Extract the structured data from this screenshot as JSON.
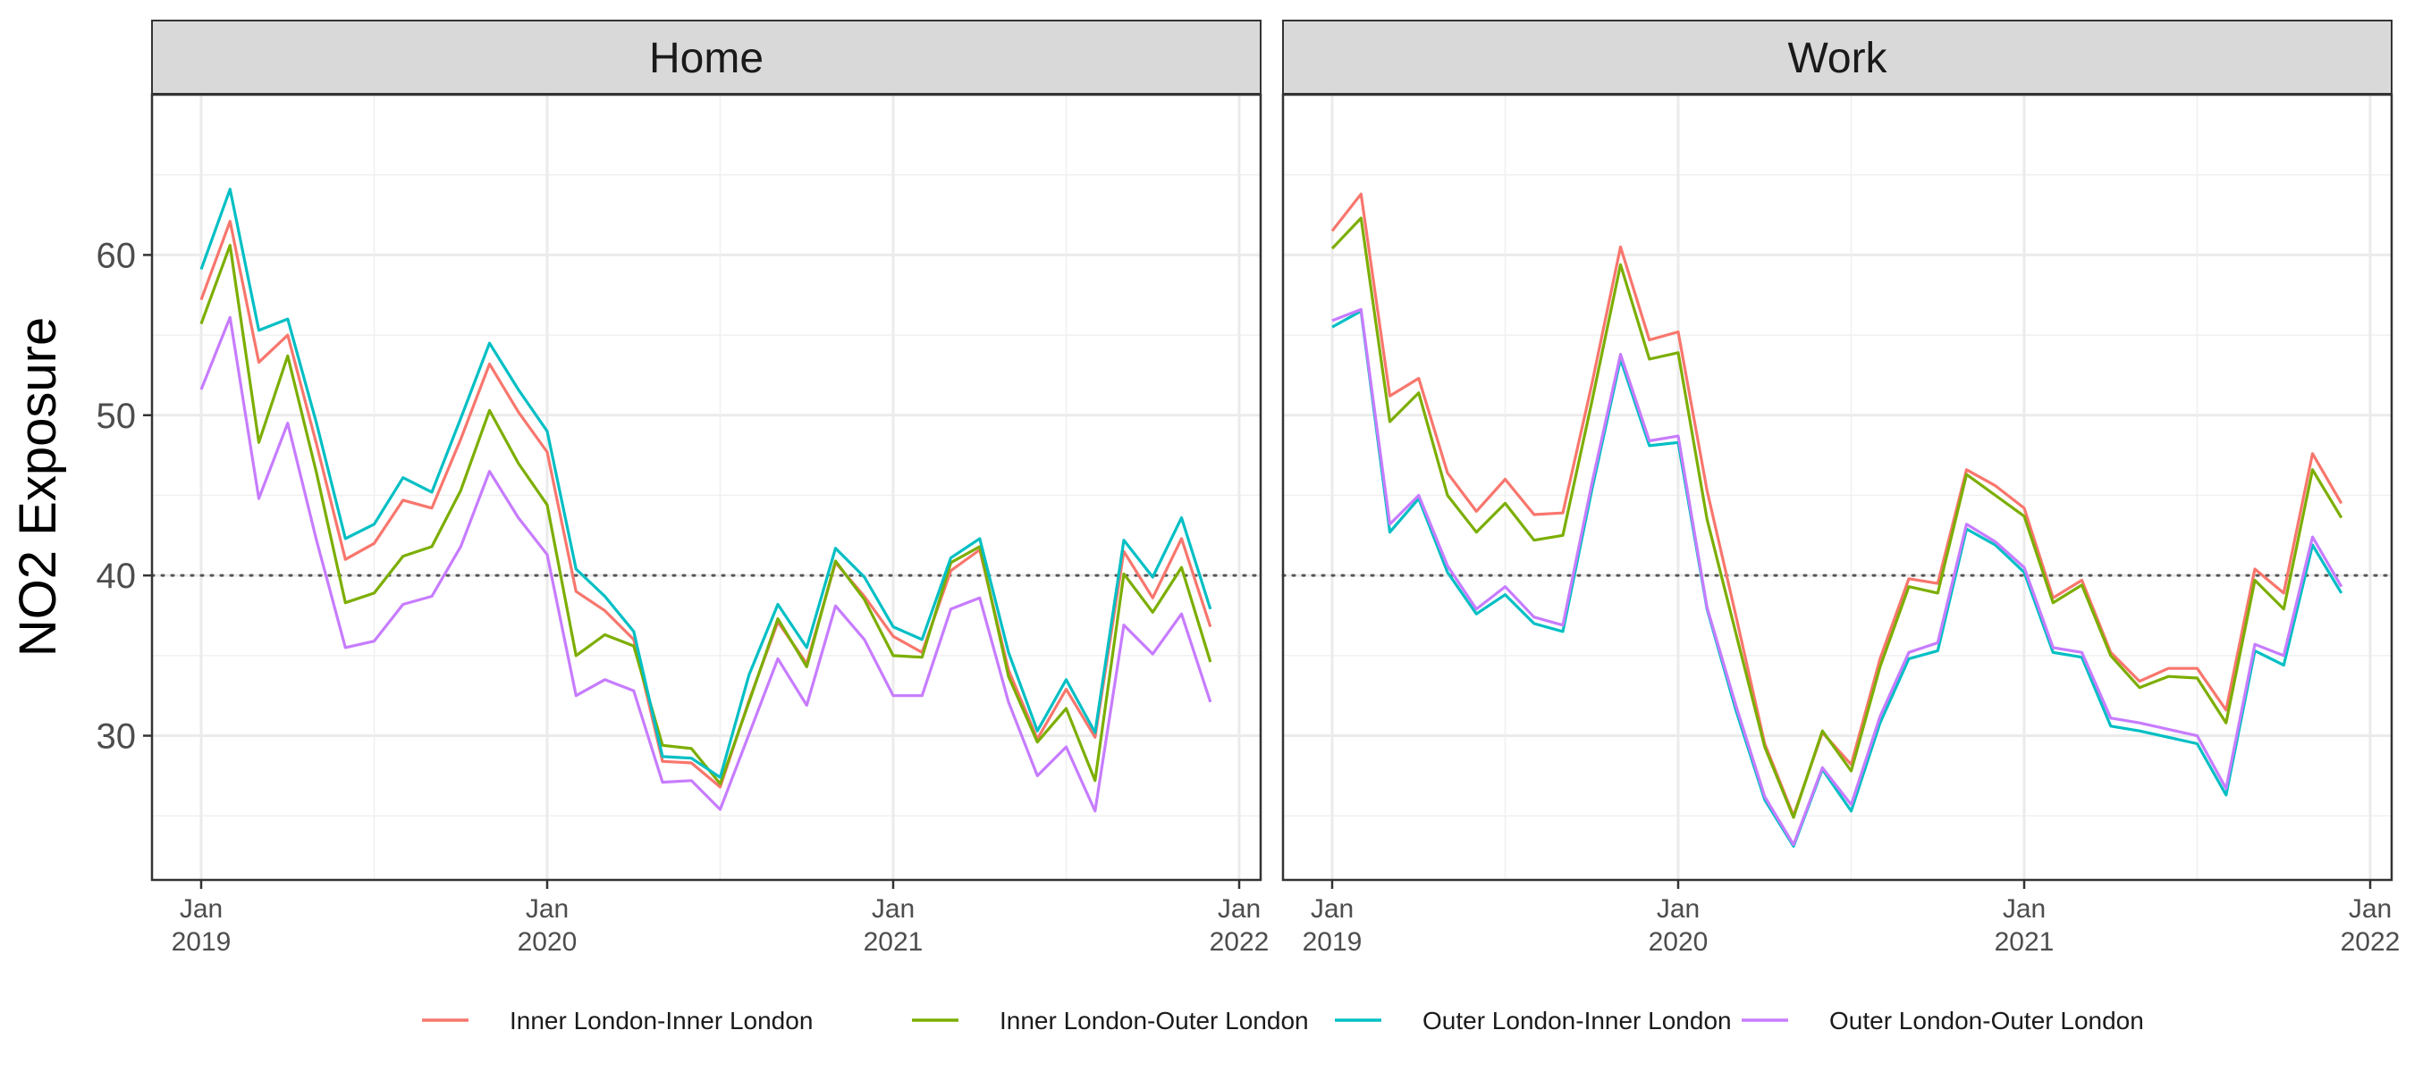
{
  "chart_data": {
    "type": "line",
    "ylabel": "NO2 Exposure",
    "xlabel": "",
    "ylim": [
      21,
      70
    ],
    "y_ticks": [
      30,
      40,
      50,
      60
    ],
    "x_ticks": [
      {
        "date": "2019-01",
        "label_top": "Jan",
        "label_bottom": "2019"
      },
      {
        "date": "2020-01",
        "label_top": "Jan",
        "label_bottom": "2020"
      },
      {
        "date": "2021-01",
        "label_top": "Jan",
        "label_bottom": "2021"
      },
      {
        "date": "2022-01",
        "label_top": "Jan",
        "label_bottom": "2022"
      }
    ],
    "reference_line": {
      "y": 40,
      "style": "dotted"
    },
    "grid": true,
    "legend_position": "bottom",
    "x": [
      "2019-01",
      "2019-02",
      "2019-03",
      "2019-04",
      "2019-05",
      "2019-06",
      "2019-07",
      "2019-08",
      "2019-09",
      "2019-10",
      "2019-11",
      "2019-12",
      "2020-01",
      "2020-02",
      "2020-03",
      "2020-04",
      "2020-05",
      "2020-06",
      "2020-07",
      "2020-08",
      "2020-09",
      "2020-10",
      "2020-11",
      "2020-12",
      "2021-01",
      "2021-02",
      "2021-03",
      "2021-04",
      "2021-05",
      "2021-06",
      "2021-07",
      "2021-08",
      "2021-09",
      "2021-10",
      "2021-11",
      "2021-12"
    ],
    "colors": {
      "Inner London-Inner London": "#f8766d",
      "Inner London-Outer London": "#7cae00",
      "Outer London-Inner London": "#00bfc4",
      "Outer London-Outer London": "#c77cff"
    },
    "panels": [
      {
        "title": "Home",
        "series": [
          {
            "name": "Inner London-Inner London",
            "values": [
              57.2,
              62.1,
              53.3,
              55.0,
              48.2,
              41.0,
              42.0,
              44.7,
              44.2,
              48.5,
              53.2,
              50.2,
              47.7,
              39.0,
              37.8,
              36.0,
              28.4,
              28.3,
              26.8,
              32.2,
              37.1,
              34.5,
              40.8,
              38.7,
              36.2,
              35.2,
              40.3,
              41.6,
              34.1,
              29.8,
              32.9,
              29.9,
              41.5,
              38.6,
              42.3,
              36.8
            ]
          },
          {
            "name": "Inner London-Outer London",
            "values": [
              55.7,
              60.6,
              48.3,
              53.7,
              46.4,
              38.3,
              38.9,
              41.2,
              41.8,
              45.3,
              50.3,
              47.0,
              44.4,
              35.0,
              36.3,
              35.6,
              29.4,
              29.2,
              27.0,
              32.1,
              37.3,
              34.3,
              40.9,
              38.5,
              35.0,
              34.9,
              40.8,
              41.8,
              33.7,
              29.6,
              31.7,
              27.2,
              40.1,
              37.7,
              40.5,
              34.6
            ]
          },
          {
            "name": "Outer London-Inner London",
            "values": [
              59.1,
              64.1,
              55.3,
              56.0,
              49.5,
              42.3,
              43.2,
              46.1,
              45.2,
              49.8,
              54.5,
              51.6,
              49.0,
              40.4,
              38.7,
              36.5,
              28.7,
              28.6,
              27.4,
              33.8,
              38.2,
              35.5,
              41.7,
              39.9,
              36.8,
              36.0,
              41.1,
              42.3,
              35.2,
              30.3,
              33.5,
              30.2,
              42.2,
              39.9,
              43.6,
              37.9
            ]
          },
          {
            "name": "Outer London-Outer London",
            "values": [
              51.6,
              56.1,
              44.8,
              49.5,
              42.2,
              35.5,
              35.9,
              38.2,
              38.7,
              41.8,
              46.5,
              43.6,
              41.3,
              32.5,
              33.5,
              32.8,
              27.1,
              27.2,
              25.4,
              30.1,
              34.8,
              31.9,
              38.1,
              36.0,
              32.5,
              32.5,
              37.9,
              38.6,
              32.1,
              27.5,
              29.3,
              25.3,
              36.9,
              35.1,
              37.6,
              32.1
            ]
          }
        ]
      },
      {
        "title": "Work",
        "series": [
          {
            "name": "Inner London-Inner London",
            "values": [
              61.5,
              63.8,
              51.2,
              52.3,
              46.4,
              44.0,
              46.0,
              43.8,
              43.9,
              51.9,
              60.5,
              54.7,
              55.2,
              45.3,
              37.5,
              29.5,
              25.0,
              30.2,
              28.2,
              34.8,
              39.8,
              39.5,
              46.6,
              45.6,
              44.2,
              38.6,
              39.7,
              35.2,
              33.4,
              34.2,
              34.2,
              31.6,
              40.4,
              38.9,
              47.6,
              44.5
            ]
          },
          {
            "name": "Inner London-Outer London",
            "values": [
              60.4,
              62.3,
              49.6,
              51.4,
              45.0,
              42.7,
              44.5,
              42.2,
              42.5,
              50.8,
              59.4,
              53.5,
              53.9,
              43.5,
              36.4,
              29.3,
              24.9,
              30.3,
              27.8,
              34.3,
              39.3,
              38.9,
              46.3,
              45.0,
              43.7,
              38.3,
              39.4,
              35.0,
              33.0,
              33.7,
              33.6,
              30.8,
              39.7,
              37.9,
              46.6,
              43.6
            ]
          },
          {
            "name": "Outer London-Inner London",
            "values": [
              55.5,
              56.5,
              42.7,
              44.8,
              40.2,
              37.6,
              38.8,
              37.0,
              36.5,
              45.3,
              53.5,
              48.1,
              48.3,
              37.9,
              31.6,
              26.0,
              23.1,
              27.9,
              25.3,
              30.8,
              34.8,
              35.3,
              42.9,
              41.9,
              40.2,
              35.2,
              34.9,
              30.6,
              30.3,
              29.9,
              29.5,
              26.3,
              35.3,
              34.4,
              41.9,
              38.9
            ]
          },
          {
            "name": "Outer London-Outer London",
            "values": [
              55.9,
              56.6,
              43.2,
              45.0,
              40.6,
              37.9,
              39.3,
              37.4,
              36.9,
              45.7,
              53.8,
              48.4,
              48.7,
              38.0,
              31.9,
              26.2,
              23.2,
              28.0,
              25.7,
              31.2,
              35.2,
              35.8,
              43.2,
              42.1,
              40.5,
              35.5,
              35.2,
              31.1,
              30.8,
              30.4,
              30.0,
              26.7,
              35.7,
              35.0,
              42.4,
              39.3
            ]
          }
        ]
      }
    ]
  }
}
